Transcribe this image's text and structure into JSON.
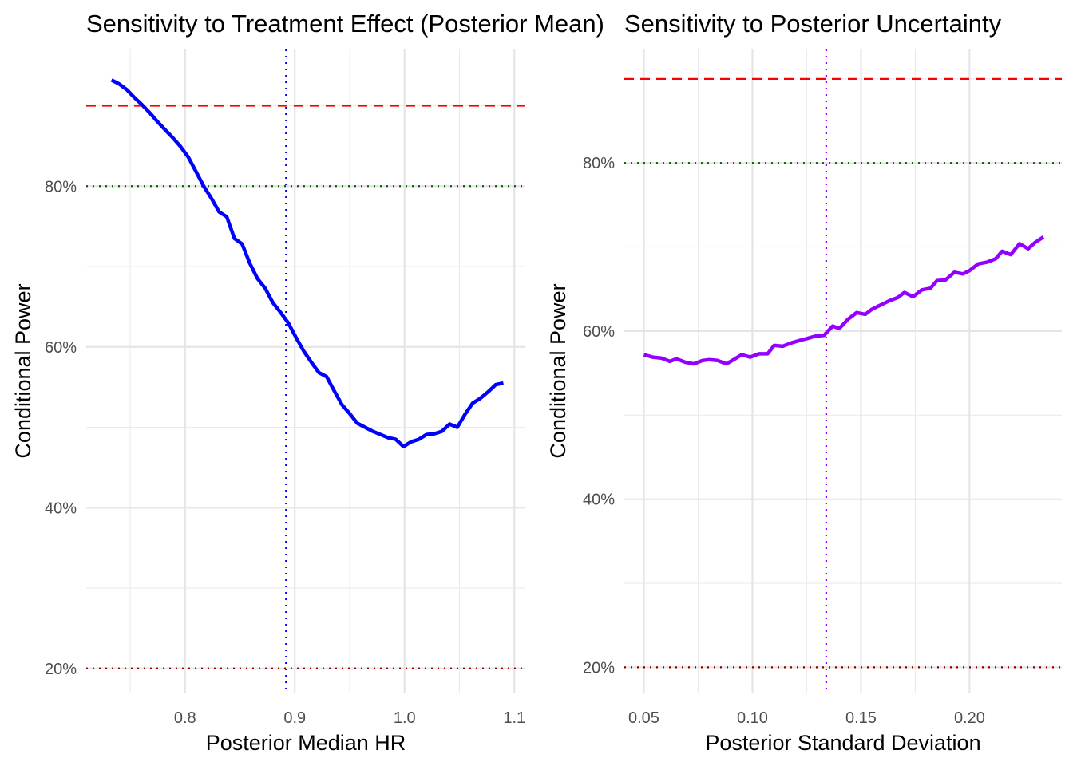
{
  "chart_data": [
    {
      "type": "line",
      "title": "Sensitivity to Treatment Effect (Posterior Mean)",
      "xlabel": "Posterior Median HR",
      "ylabel": "Conditional Power",
      "xlim": [
        0.71,
        1.11
      ],
      "ylim": [
        0.17,
        0.97
      ],
      "x_ticks": [
        0.8,
        0.9,
        1.0,
        1.1
      ],
      "x_tick_labels": [
        "0.8",
        "0.9",
        "1.0",
        "1.1"
      ],
      "y_ticks": [
        0.2,
        0.4,
        0.6,
        0.8
      ],
      "y_tick_labels": [
        "20%",
        "40%",
        "60%",
        "80%"
      ],
      "grid": true,
      "series": [
        {
          "color": "#0000ff",
          "x": [
            0.733,
            0.74,
            0.747,
            0.754,
            0.761,
            0.768,
            0.775,
            0.782,
            0.789,
            0.796,
            0.803,
            0.81,
            0.817,
            0.824,
            0.831,
            0.838,
            0.845,
            0.852,
            0.859,
            0.866,
            0.873,
            0.88,
            0.887,
            0.894,
            0.901,
            0.908,
            0.915,
            0.922,
            0.929,
            0.936,
            0.943,
            0.95,
            0.957,
            0.964,
            0.971,
            0.978,
            0.985,
            0.992,
            0.999,
            1.006,
            1.013,
            1.02,
            1.027,
            1.034,
            1.041,
            1.048,
            1.055,
            1.062,
            1.069,
            1.076,
            1.083,
            1.09
          ],
          "y": [
            0.932,
            0.927,
            0.92,
            0.91,
            0.901,
            0.891,
            0.88,
            0.87,
            0.86,
            0.849,
            0.836,
            0.818,
            0.8,
            0.785,
            0.768,
            0.762,
            0.735,
            0.728,
            0.704,
            0.685,
            0.673,
            0.655,
            0.643,
            0.63,
            0.612,
            0.595,
            0.581,
            0.568,
            0.563,
            0.545,
            0.528,
            0.517,
            0.505,
            0.5,
            0.495,
            0.491,
            0.487,
            0.485,
            0.476,
            0.482,
            0.485,
            0.491,
            0.492,
            0.495,
            0.504,
            0.5,
            0.516,
            0.53,
            0.536,
            0.544,
            0.553,
            0.555
          ]
        }
      ],
      "reference_lines": [
        {
          "orientation": "horizontal",
          "value": 0.9,
          "color": "#ff0000",
          "style": "dashed"
        },
        {
          "orientation": "horizontal",
          "value": 0.8,
          "color": "#006400",
          "style": "dotted"
        },
        {
          "orientation": "horizontal",
          "value": 0.2,
          "color": "#8b0000",
          "style": "dotted"
        },
        {
          "orientation": "vertical",
          "value": 0.892,
          "color": "#0000ff",
          "style": "dotted"
        }
      ]
    },
    {
      "type": "line",
      "title": "Sensitivity to Posterior Uncertainty",
      "xlabel": "Posterior Standard Deviation",
      "ylabel": "Conditional Power",
      "xlim": [
        0.041,
        0.2425
      ],
      "ylim": [
        0.17,
        0.935
      ],
      "x_ticks": [
        0.05,
        0.1,
        0.15,
        0.2
      ],
      "x_tick_labels": [
        "0.05",
        "0.10",
        "0.15",
        "0.20"
      ],
      "y_ticks": [
        0.2,
        0.4,
        0.6,
        0.8
      ],
      "y_tick_labels": [
        "20%",
        "40%",
        "60%",
        "80%"
      ],
      "grid": true,
      "series": [
        {
          "color": "#9400ff",
          "x": [
            0.05,
            0.054,
            0.058,
            0.062,
            0.065,
            0.069,
            0.073,
            0.077,
            0.08,
            0.084,
            0.088,
            0.092,
            0.095,
            0.099,
            0.103,
            0.107,
            0.11,
            0.114,
            0.118,
            0.122,
            0.125,
            0.129,
            0.133,
            0.137,
            0.14,
            0.144,
            0.148,
            0.152,
            0.155,
            0.159,
            0.163,
            0.167,
            0.17,
            0.174,
            0.178,
            0.182,
            0.185,
            0.189,
            0.193,
            0.197,
            0.2,
            0.204,
            0.208,
            0.212,
            0.215,
            0.219,
            0.223,
            0.227,
            0.23,
            0.234
          ],
          "y": [
            0.572,
            0.569,
            0.568,
            0.564,
            0.567,
            0.563,
            0.561,
            0.565,
            0.566,
            0.565,
            0.561,
            0.567,
            0.572,
            0.569,
            0.573,
            0.573,
            0.583,
            0.582,
            0.586,
            0.589,
            0.591,
            0.594,
            0.595,
            0.606,
            0.603,
            0.614,
            0.622,
            0.62,
            0.626,
            0.631,
            0.636,
            0.64,
            0.646,
            0.641,
            0.649,
            0.651,
            0.66,
            0.661,
            0.67,
            0.668,
            0.672,
            0.68,
            0.682,
            0.686,
            0.695,
            0.691,
            0.704,
            0.698,
            0.705,
            0.712
          ]
        }
      ],
      "reference_lines": [
        {
          "orientation": "horizontal",
          "value": 0.9,
          "color": "#ff0000",
          "style": "dashed"
        },
        {
          "orientation": "horizontal",
          "value": 0.8,
          "color": "#006400",
          "style": "dotted"
        },
        {
          "orientation": "horizontal",
          "value": 0.2,
          "color": "#8b0000",
          "style": "dotted"
        },
        {
          "orientation": "vertical",
          "value": 0.134,
          "color": "#9400ff",
          "style": "dotted"
        }
      ]
    }
  ]
}
